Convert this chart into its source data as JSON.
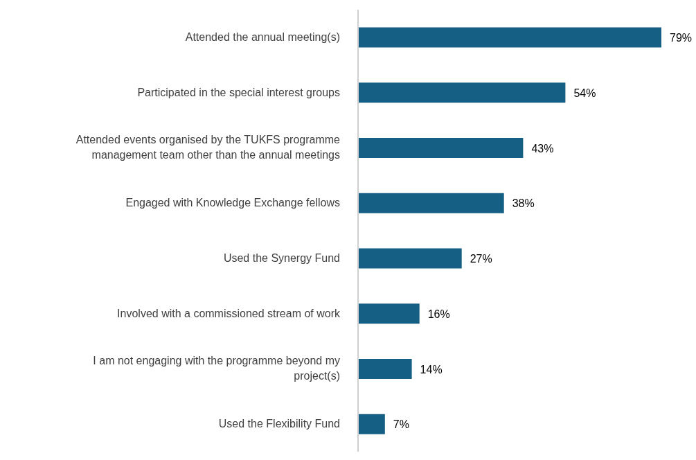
{
  "chart_data": {
    "type": "bar",
    "orientation": "horizontal",
    "categories": [
      "Attended the annual meeting(s)",
      "Participated in the special interest groups",
      "Attended events organised by the TUKFS programme management team other than the annual meetings",
      "Engaged with Knowledge Exchange fellows",
      "Used the Synergy Fund",
      "Involved with a commissioned stream of work",
      "I am not engaging with the programme beyond my project(s)",
      "Used the Flexibility Fund"
    ],
    "values": [
      79,
      54,
      43,
      38,
      27,
      16,
      14,
      7
    ],
    "value_labels": [
      "79%",
      "54%",
      "43%",
      "38%",
      "27%",
      "16%",
      "14%",
      "7%"
    ],
    "color": "#165f84",
    "grid": false,
    "legend": false
  }
}
